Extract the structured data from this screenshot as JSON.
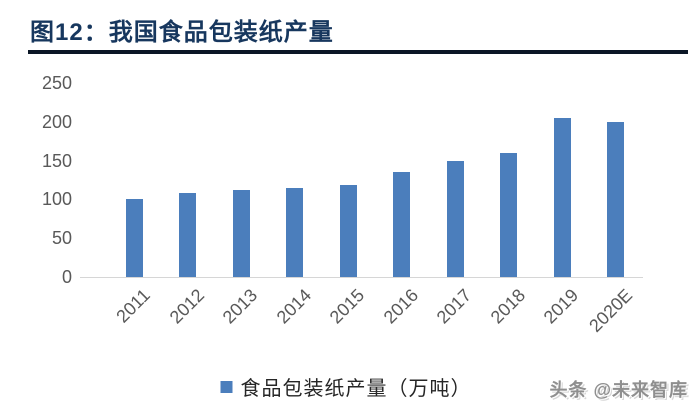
{
  "header": {
    "title": "图12：我国食品包装纸产量"
  },
  "chart_data": {
    "type": "bar",
    "title": "图12：我国食品包装纸产量",
    "categories": [
      "2011",
      "2012",
      "2013",
      "2014",
      "2015",
      "2016",
      "2017",
      "2018",
      "2019",
      "2020E"
    ],
    "series": [
      {
        "name": "食品包装纸产量（万吨）",
        "values": [
          101,
          108,
          112,
          115,
          118,
          135,
          150,
          160,
          205,
          200
        ]
      }
    ],
    "xlabel": "",
    "ylabel": "",
    "ylim": [
      0,
      250
    ],
    "yticks": [
      0,
      50,
      100,
      150,
      200,
      250
    ],
    "grid": false,
    "legend_position": "bottom",
    "bar_color": "#4b7ebc",
    "unit": "万吨"
  },
  "legend": {
    "items": [
      {
        "label": "食品包装纸产量（万吨）",
        "color": "#4b7ebc"
      }
    ]
  },
  "watermark": {
    "text": "头条 @未来智库"
  },
  "colors": {
    "title": "#17375e",
    "title_rule": "#0b1626",
    "bar": "#4b7ebc",
    "axis_text": "#595959",
    "baseline": "#d6d6d6"
  }
}
